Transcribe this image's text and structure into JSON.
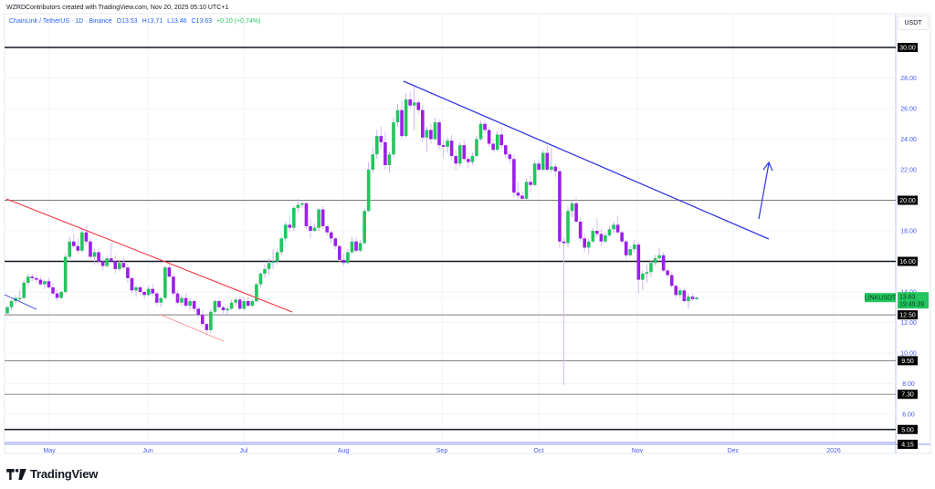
{
  "header": {
    "attribution": "WZRDContributors created with TradingView.com, Nov 20, 2025 05:10 UTC+1"
  },
  "legend": {
    "symbol": "ChainLink / TetherUS · 1D · Binance",
    "open": "O13.53",
    "high": "H13.71",
    "low": "L13.46",
    "close": "C13.63",
    "change": "+0.10 (+0.74%)"
  },
  "price_axis": {
    "currency": "USDT",
    "ticks": [
      "28.00",
      "26.00",
      "24.00",
      "22.00",
      "18.00",
      "14.00",
      "12.00",
      "10.00",
      "8.00",
      "6.00"
    ],
    "level_labels": [
      "30.00",
      "20.00",
      "16.00",
      "12.50",
      "9.50",
      "7.30",
      "5.00",
      "4.15"
    ],
    "last_price": {
      "symbol": "LINKUSDT",
      "price": "13.63",
      "countdown": "19:49:39"
    }
  },
  "time_axis": {
    "labels": [
      "May",
      "Jun",
      "Jul",
      "Aug",
      "Sep",
      "Oct",
      "Nov",
      "Dec",
      "2026"
    ]
  },
  "branding": {
    "name": "TradingView"
  },
  "colors": {
    "up": "#22c55e",
    "down": "#9b1fe8",
    "wick_up": "#c9a6f0",
    "wick_down": "#d6b8f5",
    "axis_text": "#4a5af0",
    "resistance_trendline": "#2f35e0",
    "falling_wedge_upper": "#f23645",
    "falling_wedge_lower": "#f58a8f",
    "level_line": "#131722",
    "label_bg": "#000000",
    "last_price_bg": "#22c55e"
  },
  "chart_data": {
    "type": "candlestick",
    "title": "ChainLink / TetherUS · 1D · Binance",
    "xlabel": "",
    "ylabel": "USDT",
    "ylim": [
      4.15,
      31.0
    ],
    "x_tick_labels": [
      "May",
      "Jun",
      "Jul",
      "Aug",
      "Sep",
      "Oct",
      "Nov",
      "Dec",
      "2026"
    ],
    "horizontal_levels": [
      30.0,
      20.0,
      16.0,
      12.5,
      9.5,
      7.3,
      5.0,
      4.15
    ],
    "trendlines": [
      {
        "name": "descending resistance (blue)",
        "from": {
          "date": "Aug 22",
          "price": 27.8
        },
        "to": {
          "date": "Dec 10",
          "price": 17.4
        }
      },
      {
        "name": "falling wedge upper (red)",
        "from": {
          "date": "Apr 20",
          "price": 20.0
        },
        "to": {
          "date": "Jul 15",
          "price": 12.6
        }
      },
      {
        "name": "falling wedge lower (red)",
        "from": {
          "date": "Jun 12",
          "price": 12.6
        },
        "to": {
          "date": "Jun 30",
          "price": 10.8
        }
      },
      {
        "name": "early downtrend (blue)",
        "from": {
          "date": "Apr 20",
          "price": 14.0
        },
        "to": {
          "date": "Apr 27",
          "price": 12.9
        }
      }
    ],
    "annotations": [
      {
        "type": "arrow",
        "direction": "up",
        "near": "Dec 5",
        "from_price": 18.3,
        "to_price": 22.6
      }
    ],
    "last": {
      "open": 13.53,
      "high": 13.71,
      "low": 13.46,
      "close": 13.63,
      "change": "+0.10 (+0.74%)"
    },
    "series": [
      {
        "name": "LINKUSDT approx closes (daily, Apr 22 → Nov 20, 2025)",
        "ohlc": [
          [
            12.6,
            13.1,
            12.5,
            13.0
          ],
          [
            13.0,
            13.5,
            12.8,
            13.4
          ],
          [
            13.4,
            13.8,
            13.2,
            13.6
          ],
          [
            13.6,
            14.1,
            13.4,
            13.6
          ],
          [
            13.6,
            14.8,
            13.5,
            14.6
          ],
          [
            14.6,
            15.2,
            14.4,
            15.0
          ],
          [
            15.0,
            15.2,
            14.7,
            14.9
          ],
          [
            14.9,
            15.1,
            14.6,
            14.8
          ],
          [
            14.8,
            15.0,
            14.4,
            14.5
          ],
          [
            14.5,
            14.8,
            14.2,
            14.7
          ],
          [
            14.7,
            14.9,
            14.2,
            14.3
          ],
          [
            14.3,
            14.6,
            13.8,
            13.9
          ],
          [
            13.9,
            14.2,
            13.4,
            13.6
          ],
          [
            13.6,
            14.1,
            13.5,
            14.0
          ],
          [
            14.0,
            16.5,
            13.9,
            16.3
          ],
          [
            16.3,
            17.6,
            16.1,
            17.3
          ],
          [
            17.3,
            17.8,
            16.9,
            17.0
          ],
          [
            17.0,
            17.5,
            16.5,
            16.7
          ],
          [
            16.7,
            18.2,
            16.6,
            17.9
          ],
          [
            17.9,
            18.3,
            17.1,
            17.3
          ],
          [
            17.3,
            17.5,
            16.1,
            16.3
          ],
          [
            16.3,
            16.8,
            15.8,
            16.6
          ],
          [
            16.6,
            16.9,
            15.7,
            16.0
          ],
          [
            16.0,
            16.3,
            15.4,
            15.7
          ],
          [
            15.7,
            16.4,
            15.6,
            16.2
          ],
          [
            16.2,
            17.2,
            16.0,
            16.0
          ],
          [
            16.0,
            16.4,
            15.2,
            15.5
          ],
          [
            15.5,
            16.1,
            15.4,
            15.9
          ],
          [
            15.9,
            16.3,
            15.5,
            15.6
          ],
          [
            15.6,
            15.8,
            14.6,
            14.9
          ],
          [
            14.9,
            15.0,
            13.9,
            14.1
          ],
          [
            14.1,
            14.4,
            13.7,
            14.3
          ],
          [
            14.3,
            14.4,
            13.8,
            14.0
          ],
          [
            14.0,
            14.1,
            13.5,
            13.8
          ],
          [
            13.8,
            14.4,
            13.7,
            14.2
          ],
          [
            14.2,
            14.5,
            13.8,
            13.9
          ],
          [
            13.9,
            14.0,
            13.1,
            13.3
          ],
          [
            13.3,
            13.7,
            13.0,
            13.6
          ],
          [
            13.6,
            15.7,
            13.5,
            15.6
          ],
          [
            15.6,
            15.8,
            14.9,
            15.0
          ],
          [
            15.0,
            15.2,
            13.7,
            13.9
          ],
          [
            13.9,
            14.1,
            13.2,
            13.3
          ],
          [
            13.3,
            13.8,
            13.1,
            13.6
          ],
          [
            13.6,
            13.9,
            13.0,
            13.1
          ],
          [
            13.1,
            13.6,
            12.8,
            13.4
          ],
          [
            13.4,
            13.5,
            12.7,
            12.9
          ],
          [
            12.9,
            13.1,
            12.3,
            12.5
          ],
          [
            12.5,
            12.8,
            11.7,
            11.9
          ],
          [
            11.9,
            12.0,
            11.1,
            11.5
          ],
          [
            11.5,
            12.9,
            11.3,
            12.7
          ],
          [
            12.7,
            13.5,
            12.6,
            13.4
          ],
          [
            13.4,
            13.6,
            12.9,
            13.0
          ],
          [
            13.0,
            13.1,
            12.5,
            12.8
          ],
          [
            12.8,
            13.1,
            12.5,
            12.9
          ],
          [
            12.9,
            13.5,
            12.8,
            13.3
          ],
          [
            13.3,
            13.7,
            13.1,
            13.5
          ],
          [
            13.5,
            13.7,
            12.8,
            12.9
          ],
          [
            12.9,
            13.6,
            12.8,
            13.4
          ],
          [
            13.4,
            13.7,
            13.0,
            13.1
          ],
          [
            13.1,
            13.5,
            13.0,
            13.4
          ],
          [
            13.4,
            14.6,
            13.3,
            14.5
          ],
          [
            14.5,
            15.3,
            14.3,
            15.2
          ],
          [
            15.2,
            15.8,
            14.9,
            15.5
          ],
          [
            15.5,
            16.2,
            15.1,
            15.9
          ],
          [
            15.9,
            16.8,
            15.5,
            16.0
          ],
          [
            16.0,
            16.8,
            15.8,
            16.6
          ],
          [
            16.6,
            17.6,
            16.4,
            17.5
          ],
          [
            17.5,
            18.6,
            17.3,
            18.4
          ],
          [
            18.4,
            19.0,
            17.9,
            18.2
          ],
          [
            18.2,
            19.6,
            18.0,
            19.5
          ],
          [
            19.5,
            20.1,
            19.2,
            19.7
          ],
          [
            19.7,
            20.0,
            19.5,
            19.8
          ],
          [
            19.8,
            19.9,
            18.1,
            18.3
          ],
          [
            18.3,
            18.8,
            17.5,
            18.0
          ],
          [
            18.0,
            18.5,
            17.9,
            18.2
          ],
          [
            18.2,
            19.5,
            18.0,
            19.4
          ],
          [
            19.4,
            19.6,
            18.1,
            18.3
          ],
          [
            18.3,
            18.4,
            17.7,
            17.9
          ],
          [
            17.9,
            18.0,
            17.2,
            17.5
          ],
          [
            17.5,
            17.6,
            16.8,
            17.0
          ],
          [
            17.0,
            17.1,
            15.9,
            16.1
          ],
          [
            16.1,
            16.5,
            15.7,
            15.9
          ],
          [
            15.9,
            16.8,
            15.8,
            16.6
          ],
          [
            16.6,
            17.6,
            16.5,
            17.3
          ],
          [
            17.3,
            17.6,
            16.6,
            16.7
          ],
          [
            16.7,
            17.4,
            16.6,
            17.2
          ],
          [
            17.2,
            19.5,
            17.1,
            19.3
          ],
          [
            19.3,
            22.5,
            19.2,
            22.0
          ],
          [
            22.0,
            23.4,
            21.8,
            23.0
          ],
          [
            23.0,
            24.6,
            22.7,
            24.2
          ],
          [
            24.2,
            24.8,
            23.4,
            23.8
          ],
          [
            23.8,
            24.5,
            22.0,
            22.3
          ],
          [
            22.3,
            23.2,
            21.8,
            23.0
          ],
          [
            23.0,
            25.4,
            22.8,
            25.1
          ],
          [
            25.1,
            26.3,
            24.8,
            25.9
          ],
          [
            25.9,
            26.5,
            24.0,
            24.2
          ],
          [
            24.2,
            27.0,
            24.1,
            26.6
          ],
          [
            26.6,
            27.1,
            26.0,
            26.2
          ],
          [
            26.2,
            27.5,
            24.6,
            26.4
          ],
          [
            26.4,
            26.6,
            25.6,
            25.9
          ],
          [
            25.9,
            26.2,
            23.8,
            24.1
          ],
          [
            24.1,
            24.8,
            23.2,
            24.6
          ],
          [
            24.6,
            25.0,
            23.7,
            24.0
          ],
          [
            24.0,
            25.4,
            23.9,
            25.1
          ],
          [
            25.1,
            25.3,
            23.3,
            23.6
          ],
          [
            23.6,
            23.9,
            22.8,
            23.5
          ],
          [
            23.5,
            24.1,
            23.1,
            23.9
          ],
          [
            23.9,
            24.3,
            22.6,
            22.9
          ],
          [
            22.9,
            23.3,
            22.0,
            22.4
          ],
          [
            22.4,
            23.8,
            22.2,
            23.6
          ],
          [
            23.6,
            23.9,
            22.6,
            22.7
          ],
          [
            22.7,
            22.9,
            22.1,
            22.5
          ],
          [
            22.5,
            23.1,
            22.3,
            22.9
          ],
          [
            22.9,
            24.2,
            22.8,
            24.0
          ],
          [
            24.0,
            25.2,
            23.9,
            25.0
          ],
          [
            25.0,
            25.3,
            24.4,
            24.6
          ],
          [
            24.6,
            24.8,
            23.5,
            23.7
          ],
          [
            23.7,
            24.0,
            23.1,
            23.3
          ],
          [
            23.3,
            24.5,
            23.2,
            24.3
          ],
          [
            24.3,
            24.8,
            23.4,
            23.6
          ],
          [
            23.6,
            23.7,
            22.8,
            23.0
          ],
          [
            23.0,
            23.2,
            22.4,
            22.7
          ],
          [
            22.7,
            23.0,
            20.2,
            20.5
          ],
          [
            20.5,
            21.2,
            20.1,
            20.3
          ],
          [
            20.3,
            20.6,
            20.0,
            20.1
          ],
          [
            20.1,
            21.4,
            20.0,
            21.2
          ],
          [
            21.2,
            21.6,
            20.5,
            21.0
          ],
          [
            21.0,
            22.6,
            20.9,
            22.4
          ],
          [
            22.4,
            22.7,
            21.8,
            22.0
          ],
          [
            22.0,
            23.3,
            21.9,
            23.1
          ],
          [
            23.1,
            23.6,
            21.9,
            22.0
          ],
          [
            22.0,
            23.4,
            21.8,
            22.2
          ],
          [
            22.2,
            22.4,
            21.5,
            21.9
          ],
          [
            21.9,
            22.2,
            16.9,
            17.3
          ],
          [
            17.3,
            17.6,
            7.9,
            17.2
          ],
          [
            17.2,
            19.6,
            16.9,
            19.3
          ],
          [
            19.3,
            20.0,
            18.9,
            19.8
          ],
          [
            19.8,
            20.2,
            18.5,
            18.6
          ],
          [
            18.6,
            18.9,
            17.3,
            17.5
          ],
          [
            17.5,
            17.8,
            16.6,
            16.9
          ],
          [
            16.9,
            17.5,
            16.5,
            17.3
          ],
          [
            17.3,
            18.2,
            17.2,
            18.0
          ],
          [
            18.0,
            18.8,
            17.6,
            17.8
          ],
          [
            17.8,
            18.1,
            17.0,
            17.3
          ],
          [
            17.3,
            17.9,
            17.2,
            17.7
          ],
          [
            17.7,
            18.3,
            17.6,
            18.1
          ],
          [
            18.1,
            18.6,
            17.8,
            18.4
          ],
          [
            18.4,
            19.0,
            17.8,
            17.9
          ],
          [
            17.9,
            18.0,
            17.1,
            17.3
          ],
          [
            17.3,
            17.4,
            16.2,
            16.4
          ],
          [
            16.4,
            17.0,
            16.3,
            16.8
          ],
          [
            16.8,
            17.4,
            16.6,
            17.1
          ],
          [
            17.1,
            17.3,
            13.9,
            14.8
          ],
          [
            14.8,
            15.4,
            14.1,
            15.2
          ],
          [
            15.2,
            15.8,
            14.6,
            15.3
          ],
          [
            15.3,
            16.1,
            15.0,
            15.9
          ],
          [
            15.9,
            16.4,
            15.7,
            16.2
          ],
          [
            16.2,
            16.9,
            16.0,
            16.4
          ],
          [
            16.4,
            16.6,
            15.3,
            15.4
          ],
          [
            15.4,
            15.5,
            14.9,
            15.1
          ],
          [
            15.1,
            15.3,
            14.3,
            14.4
          ],
          [
            14.4,
            14.5,
            13.6,
            13.8
          ],
          [
            13.8,
            14.3,
            13.6,
            14.1
          ],
          [
            14.1,
            14.2,
            13.3,
            13.4
          ],
          [
            13.4,
            13.9,
            12.9,
            13.7
          ],
          [
            13.7,
            13.9,
            13.4,
            13.53
          ],
          [
            13.53,
            13.71,
            13.46,
            13.63
          ]
        ]
      }
    ]
  }
}
